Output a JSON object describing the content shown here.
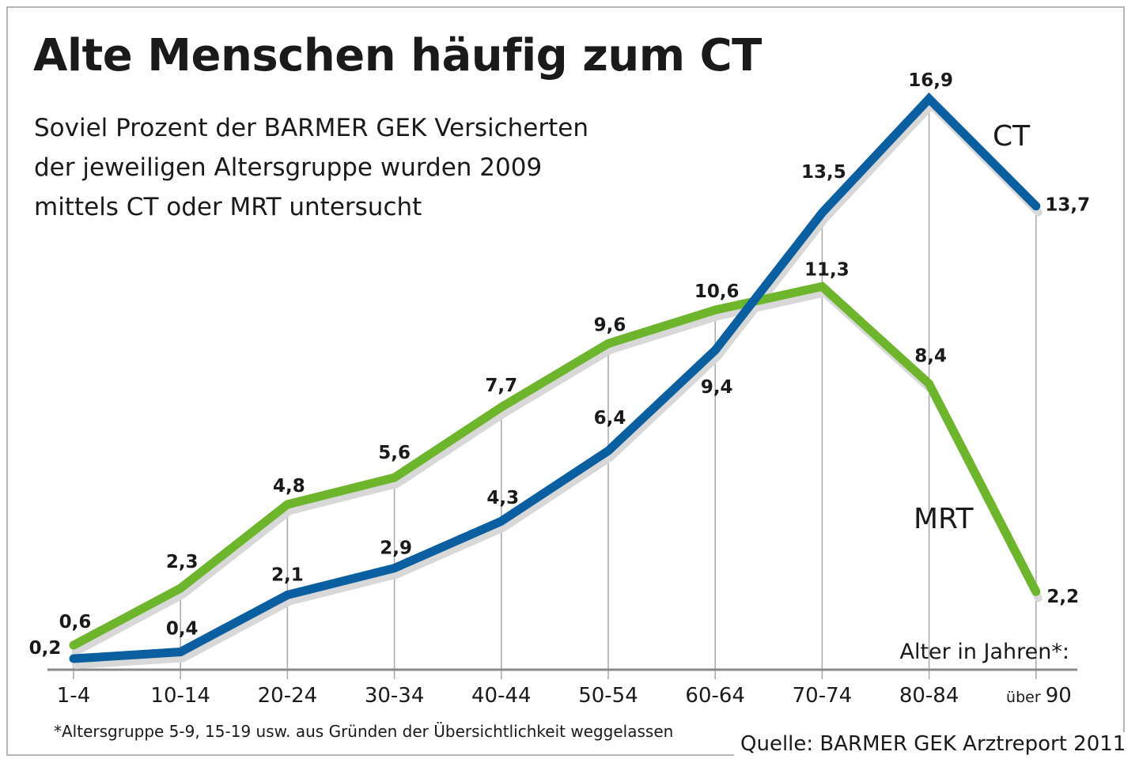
{
  "title": "Alte Menschen häufig zum CT",
  "subtitle": [
    "Soviel Prozent der BARMER GEK Versicherten",
    "der jeweiligen Altersgruppe wurden 2009",
    "mittels CT oder MRT untersucht"
  ],
  "footnote": "*Altersgruppe 5-9, 15-19 usw. aus Gründen der Übersichtlichkeit weggelassen",
  "source": "Quelle: BARMER GEK Arztreport 2011",
  "chart_data": {
    "type": "line",
    "title": "Alte Menschen häufig zum CT",
    "xlabel": "Alter in Jahren*:",
    "ylabel": "",
    "categories": [
      "1-4",
      "10-14",
      "20-24",
      "30-34",
      "40-44",
      "50-54",
      "60-64",
      "70-74",
      "80-84",
      "über 90"
    ],
    "last_category_parts": [
      "über",
      "90"
    ],
    "ylim": [
      0,
      18
    ],
    "grid": "vertical drop lines",
    "series": [
      {
        "name": "CT",
        "color": "#0a5fa0",
        "values": [
          0.2,
          0.4,
          2.1,
          2.9,
          4.3,
          6.4,
          9.4,
          13.5,
          16.9,
          13.7
        ],
        "labels": [
          "0,2",
          "0,4",
          "2,1",
          "2,9",
          "4,3",
          "6,4",
          "9,4",
          "13,5",
          "16,9",
          "13,7"
        ]
      },
      {
        "name": "MRT",
        "color": "#6cb52d",
        "values": [
          0.6,
          2.3,
          4.8,
          5.6,
          7.7,
          9.6,
          10.6,
          11.3,
          8.4,
          2.2
        ],
        "labels": [
          "0,6",
          "2,3",
          "4,8",
          "5,6",
          "7,7",
          "9,6",
          "10,6",
          "11,3",
          "8,4",
          "2,2"
        ]
      }
    ]
  }
}
